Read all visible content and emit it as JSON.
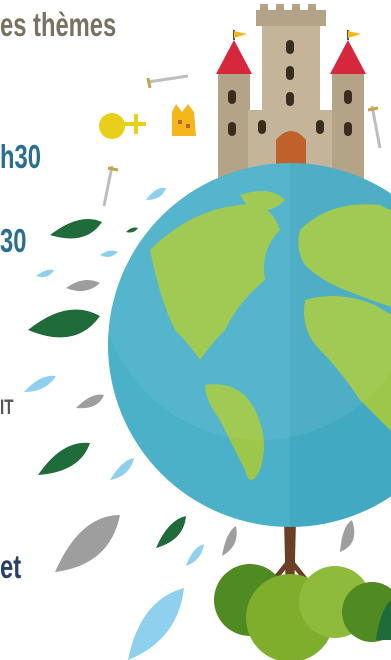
{
  "texts": {
    "themes": "es thèmes",
    "h30a": "h30",
    "h30b": "30",
    "it": "IT",
    "et": "et"
  },
  "colors": {
    "ocean": "#4bb1c9",
    "land": "#9cc74a",
    "leaf_dark": "#1f6b3a",
    "leaf_gray": "#9e9e9e",
    "leaf_blue": "#8fd0ee",
    "castle": "#c4b49a",
    "roof": "#d6283c",
    "door": "#c0602b",
    "tree_trunk": "#6b3e26",
    "crown": "#f3b71c"
  },
  "icons": [
    "castle-icon",
    "globe-icon",
    "crown-icon",
    "orb-icon",
    "sword-icon",
    "leaf-icon",
    "tree-icon"
  ]
}
